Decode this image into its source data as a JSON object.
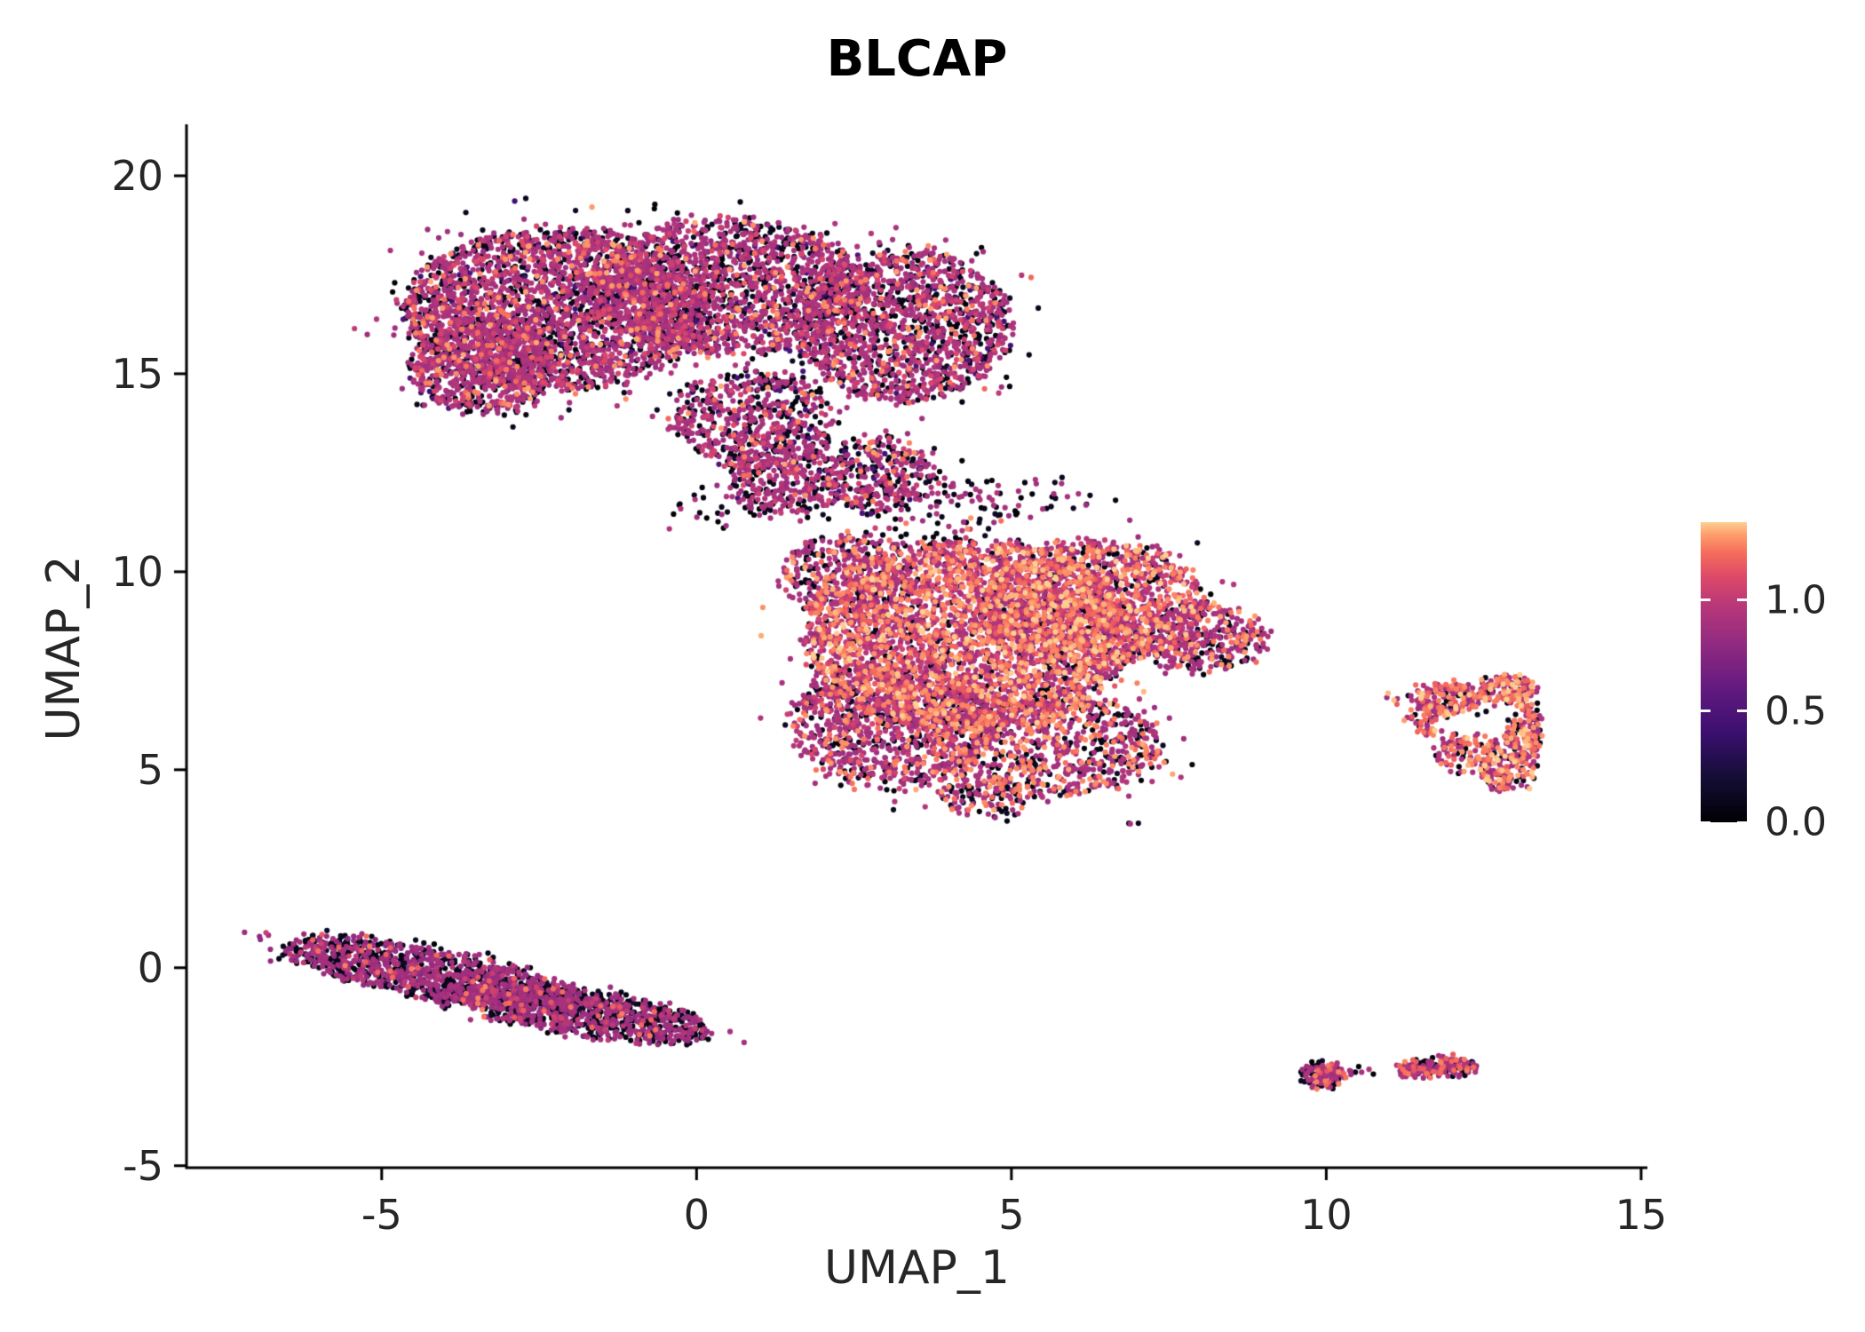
{
  "chart_data": {
    "type": "scatter",
    "title": "BLCAP",
    "xlabel": "UMAP_1",
    "ylabel": "UMAP_2",
    "xlim": [
      -8.1,
      15.1
    ],
    "ylim": [
      -5.05,
      21.3
    ],
    "grid": false,
    "xticks": [
      {
        "label": "-5",
        "value": -5
      },
      {
        "label": "0",
        "value": 0
      },
      {
        "label": "5",
        "value": 5
      },
      {
        "label": "10",
        "value": 10
      },
      {
        "label": "15",
        "value": 15
      }
    ],
    "yticks": [
      {
        "label": "-5",
        "value": -5
      },
      {
        "label": "0",
        "value": 0
      },
      {
        "label": "5",
        "value": 5
      },
      {
        "label": "10",
        "value": 10
      },
      {
        "label": "15",
        "value": 15
      },
      {
        "label": "20",
        "value": 20
      }
    ],
    "legend": {
      "position": "right",
      "domain": [
        0,
        1.35
      ],
      "ticks": [
        {
          "label": "1.0",
          "value": 1.0
        },
        {
          "label": "0.5",
          "value": 0.5
        },
        {
          "label": "0.0",
          "value": 0.0
        }
      ]
    },
    "colormap": [
      [
        0.0,
        "#000004"
      ],
      [
        0.15,
        "#140e36"
      ],
      [
        0.3,
        "#3b0f70"
      ],
      [
        0.45,
        "#641a80"
      ],
      [
        0.6,
        "#932b80"
      ],
      [
        0.72,
        "#b73779"
      ],
      [
        0.82,
        "#de4968"
      ],
      [
        0.9,
        "#f66e5c"
      ],
      [
        0.96,
        "#fe9f6d"
      ],
      [
        1.0,
        "#fecf92"
      ]
    ],
    "point_radius": 3.1,
    "clusters": [
      {
        "name": "upper-left-lobe",
        "mix": [
          [
            0,
            0.3
          ],
          [
            0.45,
            0.05
          ],
          [
            0.9,
            0.49
          ],
          [
            1.05,
            0.1
          ],
          [
            1.25,
            0.06
          ]
        ],
        "blobs": [
          {
            "cx": -2.3,
            "cy": 16.6,
            "rx": 2.35,
            "ry": 2.05,
            "n": 2600
          },
          {
            "cx": 0.5,
            "cy": 17.2,
            "rx": 2.2,
            "ry": 1.7,
            "n": 1800
          },
          {
            "cx": 3.3,
            "cy": 16.2,
            "rx": 1.7,
            "ry": 1.9,
            "n": 1500
          },
          {
            "cx": -3.4,
            "cy": 15.2,
            "rx": 1.15,
            "ry": 1.2,
            "n": 700
          },
          {
            "cx": 0.9,
            "cy": 13.9,
            "rx": 1.3,
            "ry": 1.2,
            "n": 550
          },
          {
            "cx": 1.4,
            "cy": 12.3,
            "rx": 0.95,
            "ry": 0.85,
            "n": 280
          },
          {
            "cx": 2.9,
            "cy": 12.4,
            "rx": 0.85,
            "ry": 0.95,
            "n": 280
          }
        ]
      },
      {
        "name": "central-lobe",
        "mix": [
          [
            0,
            0.12
          ],
          [
            0.9,
            0.4
          ],
          [
            1.05,
            0.16
          ],
          [
            1.2,
            0.18
          ],
          [
            1.3,
            0.14
          ]
        ],
        "blobs": [
          {
            "cx": 4.3,
            "cy": 8.4,
            "rx": 2.6,
            "ry": 2.4,
            "n": 3300
          },
          {
            "cx": 6.3,
            "cy": 9.2,
            "rx": 1.8,
            "ry": 1.6,
            "n": 1300
          },
          {
            "cx": 3.1,
            "cy": 6.1,
            "rx": 1.6,
            "ry": 1.6,
            "n": 950,
            "mix": [
              [
                0,
                0.24
              ],
              [
                0.9,
                0.52
              ],
              [
                1.05,
                0.1
              ],
              [
                1.25,
                0.14
              ]
            ]
          },
          {
            "cx": 5.6,
            "cy": 5.6,
            "rx": 1.8,
            "ry": 1.3,
            "n": 800,
            "mix": [
              [
                0,
                0.26
              ],
              [
                0.9,
                0.48
              ],
              [
                1.25,
                0.26
              ]
            ]
          },
          {
            "cx": 4.6,
            "cy": 4.3,
            "rx": 0.7,
            "ry": 0.5,
            "n": 120,
            "mix": [
              [
                0,
                0.34
              ],
              [
                0.9,
                0.5
              ],
              [
                1.25,
                0.16
              ]
            ]
          },
          {
            "cx": 8.0,
            "cy": 8.3,
            "rx": 1.05,
            "ry": 0.85,
            "n": 380,
            "mix": [
              [
                0,
                0.28
              ],
              [
                0.9,
                0.56
              ],
              [
                1.25,
                0.16
              ]
            ]
          },
          {
            "cx": 2.4,
            "cy": 9.9,
            "rx": 1.05,
            "ry": 1.05,
            "n": 380,
            "mix": [
              [
                0,
                0.22
              ],
              [
                0.9,
                0.62
              ],
              [
                1.25,
                0.16
              ]
            ]
          }
        ]
      },
      {
        "name": "lower-left-streak",
        "mix": [
          [
            0,
            0.46
          ],
          [
            0.85,
            0.45
          ],
          [
            1.0,
            0.06
          ],
          [
            1.2,
            0.03
          ]
        ],
        "blobs": [
          {
            "cx": -4.2,
            "cy": -0.15,
            "rx": 2.45,
            "ry": 0.6,
            "n": 1150,
            "rot": -17
          },
          {
            "cx": -1.8,
            "cy": -1.15,
            "rx": 2.1,
            "ry": 0.55,
            "n": 950,
            "rot": -14
          }
        ]
      },
      {
        "name": "right-triangle-island",
        "mix": [
          [
            0,
            0.18
          ],
          [
            0.9,
            0.4
          ],
          [
            1.2,
            0.26
          ],
          [
            1.3,
            0.16
          ]
        ],
        "blobs": [
          {
            "cx": 11.95,
            "cy": 6.8,
            "rx": 0.55,
            "ry": 0.38,
            "n": 150
          },
          {
            "cx": 12.85,
            "cy": 7.0,
            "rx": 0.5,
            "ry": 0.33,
            "n": 150
          },
          {
            "cx": 13.15,
            "cy": 5.95,
            "rx": 0.3,
            "ry": 0.75,
            "n": 150
          },
          {
            "cx": 12.85,
            "cy": 4.95,
            "rx": 0.4,
            "ry": 0.5,
            "n": 130
          },
          {
            "cx": 12.25,
            "cy": 5.45,
            "rx": 0.5,
            "ry": 0.45,
            "n": 110
          },
          {
            "cx": 11.6,
            "cy": 6.3,
            "rx": 0.3,
            "ry": 0.45,
            "n": 60
          },
          {
            "cx": 11.05,
            "cy": 6.85,
            "rx": 0.12,
            "ry": 0.1,
            "n": 5
          }
        ]
      },
      {
        "name": "bottom-right-islands",
        "mix": [
          [
            0,
            0.28
          ],
          [
            0.9,
            0.58
          ],
          [
            1.2,
            0.14
          ]
        ],
        "blobs": [
          {
            "cx": 9.95,
            "cy": -2.7,
            "rx": 0.38,
            "ry": 0.3,
            "n": 130
          },
          {
            "cx": 10.65,
            "cy": -2.6,
            "rx": 0.12,
            "ry": 0.1,
            "n": 5
          },
          {
            "cx": 11.45,
            "cy": -2.55,
            "rx": 0.3,
            "ry": 0.2,
            "n": 80
          },
          {
            "cx": 12.0,
            "cy": -2.5,
            "rx": 0.38,
            "ry": 0.22,
            "n": 100
          }
        ]
      },
      {
        "name": "sparse-bridge",
        "mix": [
          [
            0,
            0.55
          ],
          [
            0.9,
            0.45
          ]
        ],
        "blobs": [
          {
            "cx": 2.2,
            "cy": 12.4,
            "rx": 1.8,
            "ry": 1.3,
            "n": 120
          },
          {
            "cx": 3.8,
            "cy": 11.6,
            "rx": 1.3,
            "ry": 0.9,
            "n": 70
          },
          {
            "cx": 0.3,
            "cy": 11.6,
            "rx": 0.7,
            "ry": 0.5,
            "n": 25
          },
          {
            "cx": 5.2,
            "cy": 11.9,
            "rx": 1.2,
            "ry": 0.5,
            "n": 40
          },
          {
            "cx": 6.9,
            "cy": 3.6,
            "rx": 0.1,
            "ry": 0.08,
            "n": 3
          }
        ]
      }
    ]
  }
}
